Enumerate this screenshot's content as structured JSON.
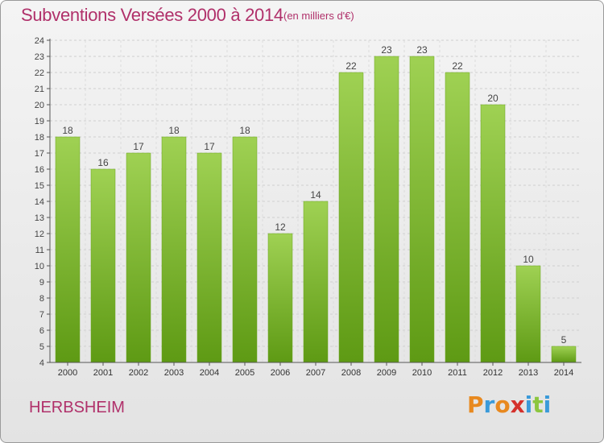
{
  "header": {
    "title": "Subventions Versées 2000 à 2014",
    "subtitle": "(en milliers d'€)"
  },
  "footer": {
    "commune": "HERBSHEIM",
    "logo_letters": [
      "P",
      "r",
      "o",
      "x",
      "i",
      "t",
      "i"
    ],
    "logo_colors": [
      "#e8891f",
      "#3a9ad9",
      "#e8891f",
      "#d4302b",
      "#3a9ad9",
      "#8cc63f",
      "#3a9ad9"
    ]
  },
  "chart_data": {
    "type": "bar",
    "categories": [
      "2000",
      "2001",
      "2002",
      "2003",
      "2004",
      "2005",
      "2006",
      "2007",
      "2008",
      "2009",
      "2010",
      "2011",
      "2012",
      "2013",
      "2014"
    ],
    "values": [
      18,
      16,
      17,
      18,
      17,
      18,
      12,
      14,
      22,
      23,
      23,
      22,
      20,
      10,
      5
    ],
    "ylim": [
      4,
      24
    ],
    "yticks": [
      4,
      5,
      6,
      7,
      8,
      9,
      10,
      11,
      12,
      13,
      14,
      15,
      16,
      17,
      18,
      19,
      20,
      21,
      22,
      23,
      24
    ],
    "grid": true,
    "bar_color_top": "#9fd153",
    "bar_color_bottom": "#5e9a14"
  }
}
